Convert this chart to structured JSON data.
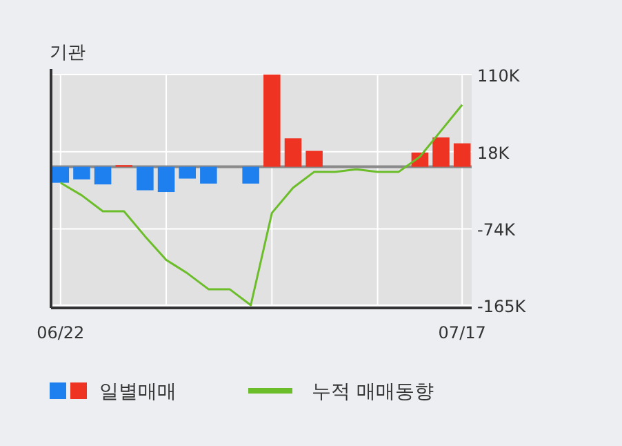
{
  "chart_data": {
    "type": "bar",
    "title": "기관",
    "categories": [
      "06/22",
      null,
      null,
      null,
      null,
      null,
      null,
      null,
      null,
      null,
      null,
      null,
      null,
      null,
      null,
      null,
      null,
      null,
      null,
      "07/17"
    ],
    "series": [
      {
        "name": "일별매매",
        "colors": [
          "#1e7fef",
          "#1e7fef",
          "#1e7fef",
          "#ee3322",
          "#1e7fef",
          "#1e7fef",
          "#1e7fef",
          "#1e7fef",
          "#1e7fef",
          "#1e7fef",
          "#ee3322",
          "#ee3322",
          "#ee3322",
          "#ee3322",
          "#ee3322",
          "#ee3322",
          "#ee3322",
          "#ee3322",
          "#ee3322",
          "#ee3322"
        ],
        "values": [
          -19,
          -15,
          -21,
          2,
          -28,
          -30,
          -14,
          -20,
          0,
          -20,
          110,
          34,
          19,
          0,
          0,
          0,
          0,
          17,
          35,
          28
        ]
      },
      {
        "name": "누적 매매동향",
        "type": "line",
        "color": "#6cbd2a",
        "values": [
          -19,
          -34,
          -53,
          -53,
          -83,
          -111,
          -127,
          -146,
          -146,
          -165,
          -55,
          -25,
          -6,
          -6,
          -3,
          -6,
          -6,
          12,
          43,
          74
        ]
      }
    ],
    "ylim": [
      -165,
      110
    ],
    "yticks": [
      {
        "value": -165,
        "label": "-165K"
      },
      {
        "value": -74,
        "label": "-74K"
      },
      {
        "value": 18,
        "label": "18K"
      },
      {
        "value": 110,
        "label": "110K"
      }
    ],
    "grid": true,
    "legend": "bottom"
  }
}
